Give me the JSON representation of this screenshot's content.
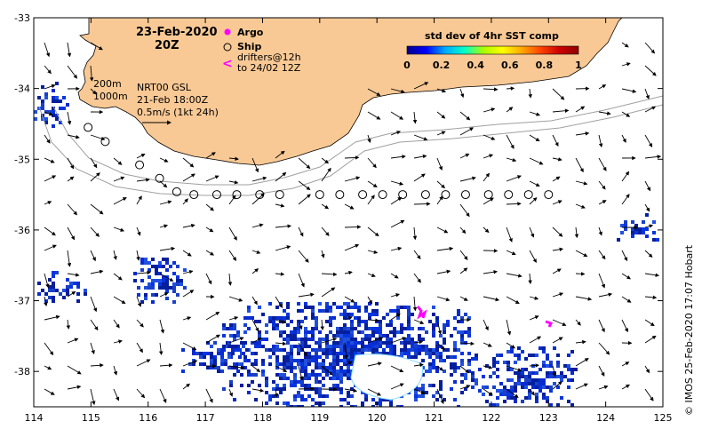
{
  "map": {
    "lon_range": [
      114,
      125
    ],
    "lat_range": [
      -38.5,
      -33
    ],
    "x_ticks": [
      114,
      115,
      116,
      117,
      118,
      119,
      120,
      121,
      122,
      123,
      124,
      125
    ],
    "y_ticks": [
      -33,
      -34,
      -35,
      -36,
      -37,
      -38
    ],
    "x_tick_labels": [
      "114",
      "115",
      "116",
      "117",
      "118",
      "119",
      "120",
      "121",
      "122",
      "123",
      "124",
      "125"
    ],
    "y_tick_labels": [
      "-33",
      "-34",
      "-35",
      "-36",
      "-37",
      "-38"
    ]
  },
  "title": {
    "date": "23-Feb-2020",
    "time": "20Z"
  },
  "legend": {
    "argo_label": "Argo",
    "ship_label": "Ship",
    "drifters_label_line1": "drifters@12h",
    "drifters_label_line2": "to 24/02 12Z",
    "argo_color": "#ff00ff",
    "drifter_color": "#ff00ff"
  },
  "colorbar": {
    "title": "std dev of 4hr SST comp",
    "tick_labels": [
      "0",
      "0.2",
      "0.4",
      "0.6",
      "0.8",
      "1"
    ],
    "stops": [
      "#00008b",
      "#0000ff",
      "#00aaff",
      "#00ffcc",
      "#aaff00",
      "#ffff00",
      "#ffaa00",
      "#ff4400",
      "#cc0000",
      "#8b0000"
    ]
  },
  "info": {
    "contour_200": "200m",
    "contour_1000": "1000m",
    "product": "NRT00 GSL",
    "analysis_time": "21-Feb 18:00Z",
    "scale": "0.5m/s (1kt 24h)"
  },
  "credit": "© IMOS 25-Feb-2020 17:07 Hobart",
  "colors": {
    "land": "#f9c995",
    "ocean": "#ffffff",
    "sst_patch": "#0a2bd0",
    "contour": "#a0a0a0"
  },
  "ship_track": [
    {
      "lon": 114.95,
      "lat": -34.55
    },
    {
      "lon": 115.25,
      "lat": -34.75
    },
    {
      "lon": 115.85,
      "lat": -35.08
    },
    {
      "lon": 116.2,
      "lat": -35.27
    },
    {
      "lon": 116.5,
      "lat": -35.46
    },
    {
      "lon": 116.8,
      "lat": -35.5
    },
    {
      "lon": 117.2,
      "lat": -35.5
    },
    {
      "lon": 117.55,
      "lat": -35.5
    },
    {
      "lon": 117.95,
      "lat": -35.5
    },
    {
      "lon": 118.3,
      "lat": -35.5
    },
    {
      "lon": 119.0,
      "lat": -35.5
    },
    {
      "lon": 119.35,
      "lat": -35.5
    },
    {
      "lon": 119.75,
      "lat": -35.5
    },
    {
      "lon": 120.1,
      "lat": -35.5
    },
    {
      "lon": 120.45,
      "lat": -35.5
    },
    {
      "lon": 120.85,
      "lat": -35.5
    },
    {
      "lon": 121.2,
      "lat": -35.5
    },
    {
      "lon": 121.55,
      "lat": -35.5
    },
    {
      "lon": 121.95,
      "lat": -35.5
    },
    {
      "lon": 122.3,
      "lat": -35.5
    },
    {
      "lon": 122.65,
      "lat": -35.5
    },
    {
      "lon": 123.0,
      "lat": -35.5
    }
  ]
}
